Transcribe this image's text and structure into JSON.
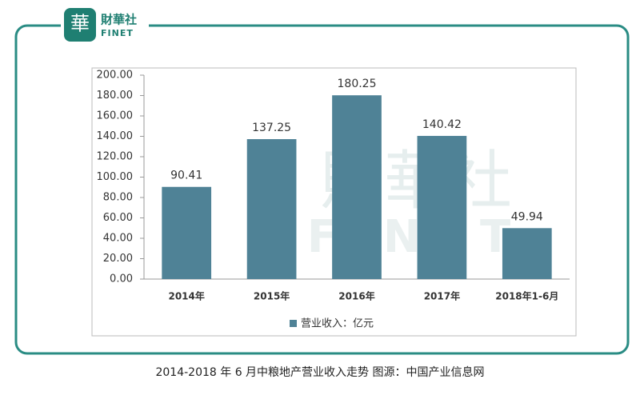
{
  "logo": {
    "name": "財華社",
    "sub": "FINET"
  },
  "caption": "2014-2018 年 6 月中粮地产营业收入走势 图源：中国产业信息网",
  "chart_data": {
    "type": "bar",
    "categories": [
      "2014年",
      "2015年",
      "2016年",
      "2017年",
      "2018年1-6月"
    ],
    "series": [
      {
        "name": "营业收入：亿元",
        "color": "#4f8296",
        "values": [
          90.41,
          137.25,
          180.25,
          140.42,
          49.94
        ]
      }
    ],
    "ylim": [
      0,
      200
    ],
    "yticks": [
      {
        "value": 0,
        "label": "0.00"
      },
      {
        "value": 20,
        "label": "20.00"
      },
      {
        "value": 40,
        "label": "40.00"
      },
      {
        "value": 60,
        "label": "60.00"
      },
      {
        "value": 80,
        "label": "80.00"
      },
      {
        "value": 100,
        "label": "100.00"
      },
      {
        "value": 120,
        "label": "120.00"
      },
      {
        "value": 140,
        "label": "140.00"
      },
      {
        "value": 160,
        "label": "160.00"
      },
      {
        "value": 180,
        "label": "180.00"
      },
      {
        "value": 200,
        "label": "200.00"
      }
    ],
    "grid": false,
    "legend": "bottom"
  }
}
